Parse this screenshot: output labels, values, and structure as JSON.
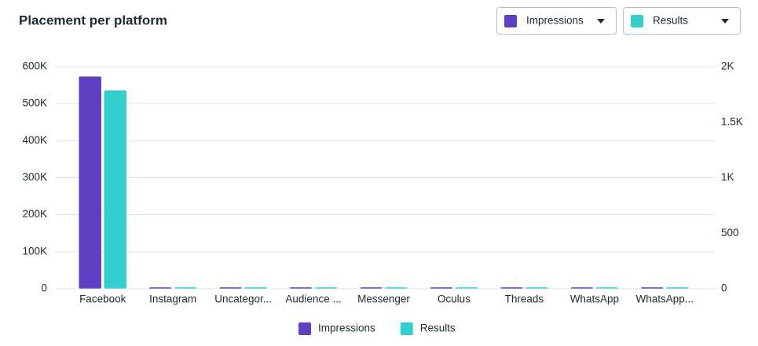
{
  "header": {
    "title": "Placement per platform",
    "controls": [
      {
        "label": "Impressions",
        "color": "#5e3ec1"
      },
      {
        "label": "Results",
        "color": "#33cfcf"
      }
    ]
  },
  "chart_data": {
    "type": "bar",
    "categories": [
      "Facebook",
      "Instagram",
      "Uncategor...",
      "Audience ...",
      "Messenger",
      "Oculus",
      "Threads",
      "WhatsApp",
      "WhatsApp..."
    ],
    "series": [
      {
        "name": "Impressions",
        "color": "#5e3ec1",
        "values": [
          574000,
          0,
          0,
          0,
          0,
          0,
          0,
          0,
          0
        ]
      },
      {
        "name": "Results",
        "color": "#33cfcf",
        "axis": "y2",
        "values": [
          1788,
          0,
          0,
          0,
          0,
          0,
          0,
          0,
          0
        ]
      }
    ],
    "ylim": [
      0,
      600000
    ],
    "yticks": [
      0,
      {
        "value": 100000,
        "label": "100K"
      },
      {
        "value": 200000,
        "label": "200K"
      },
      {
        "value": 300000,
        "label": "300K"
      },
      {
        "value": 400000,
        "label": "400K"
      },
      {
        "value": 500000,
        "label": "500K"
      },
      {
        "value": 600000,
        "label": "600K"
      }
    ],
    "y2lim": [
      0,
      2000
    ],
    "y2ticks": [
      0,
      500,
      {
        "value": 1000,
        "label": "1K"
      },
      {
        "value": 1500,
        "label": "1.5K"
      },
      {
        "value": 2000,
        "label": "2K"
      }
    ],
    "grid": true,
    "legend": "bottom"
  }
}
